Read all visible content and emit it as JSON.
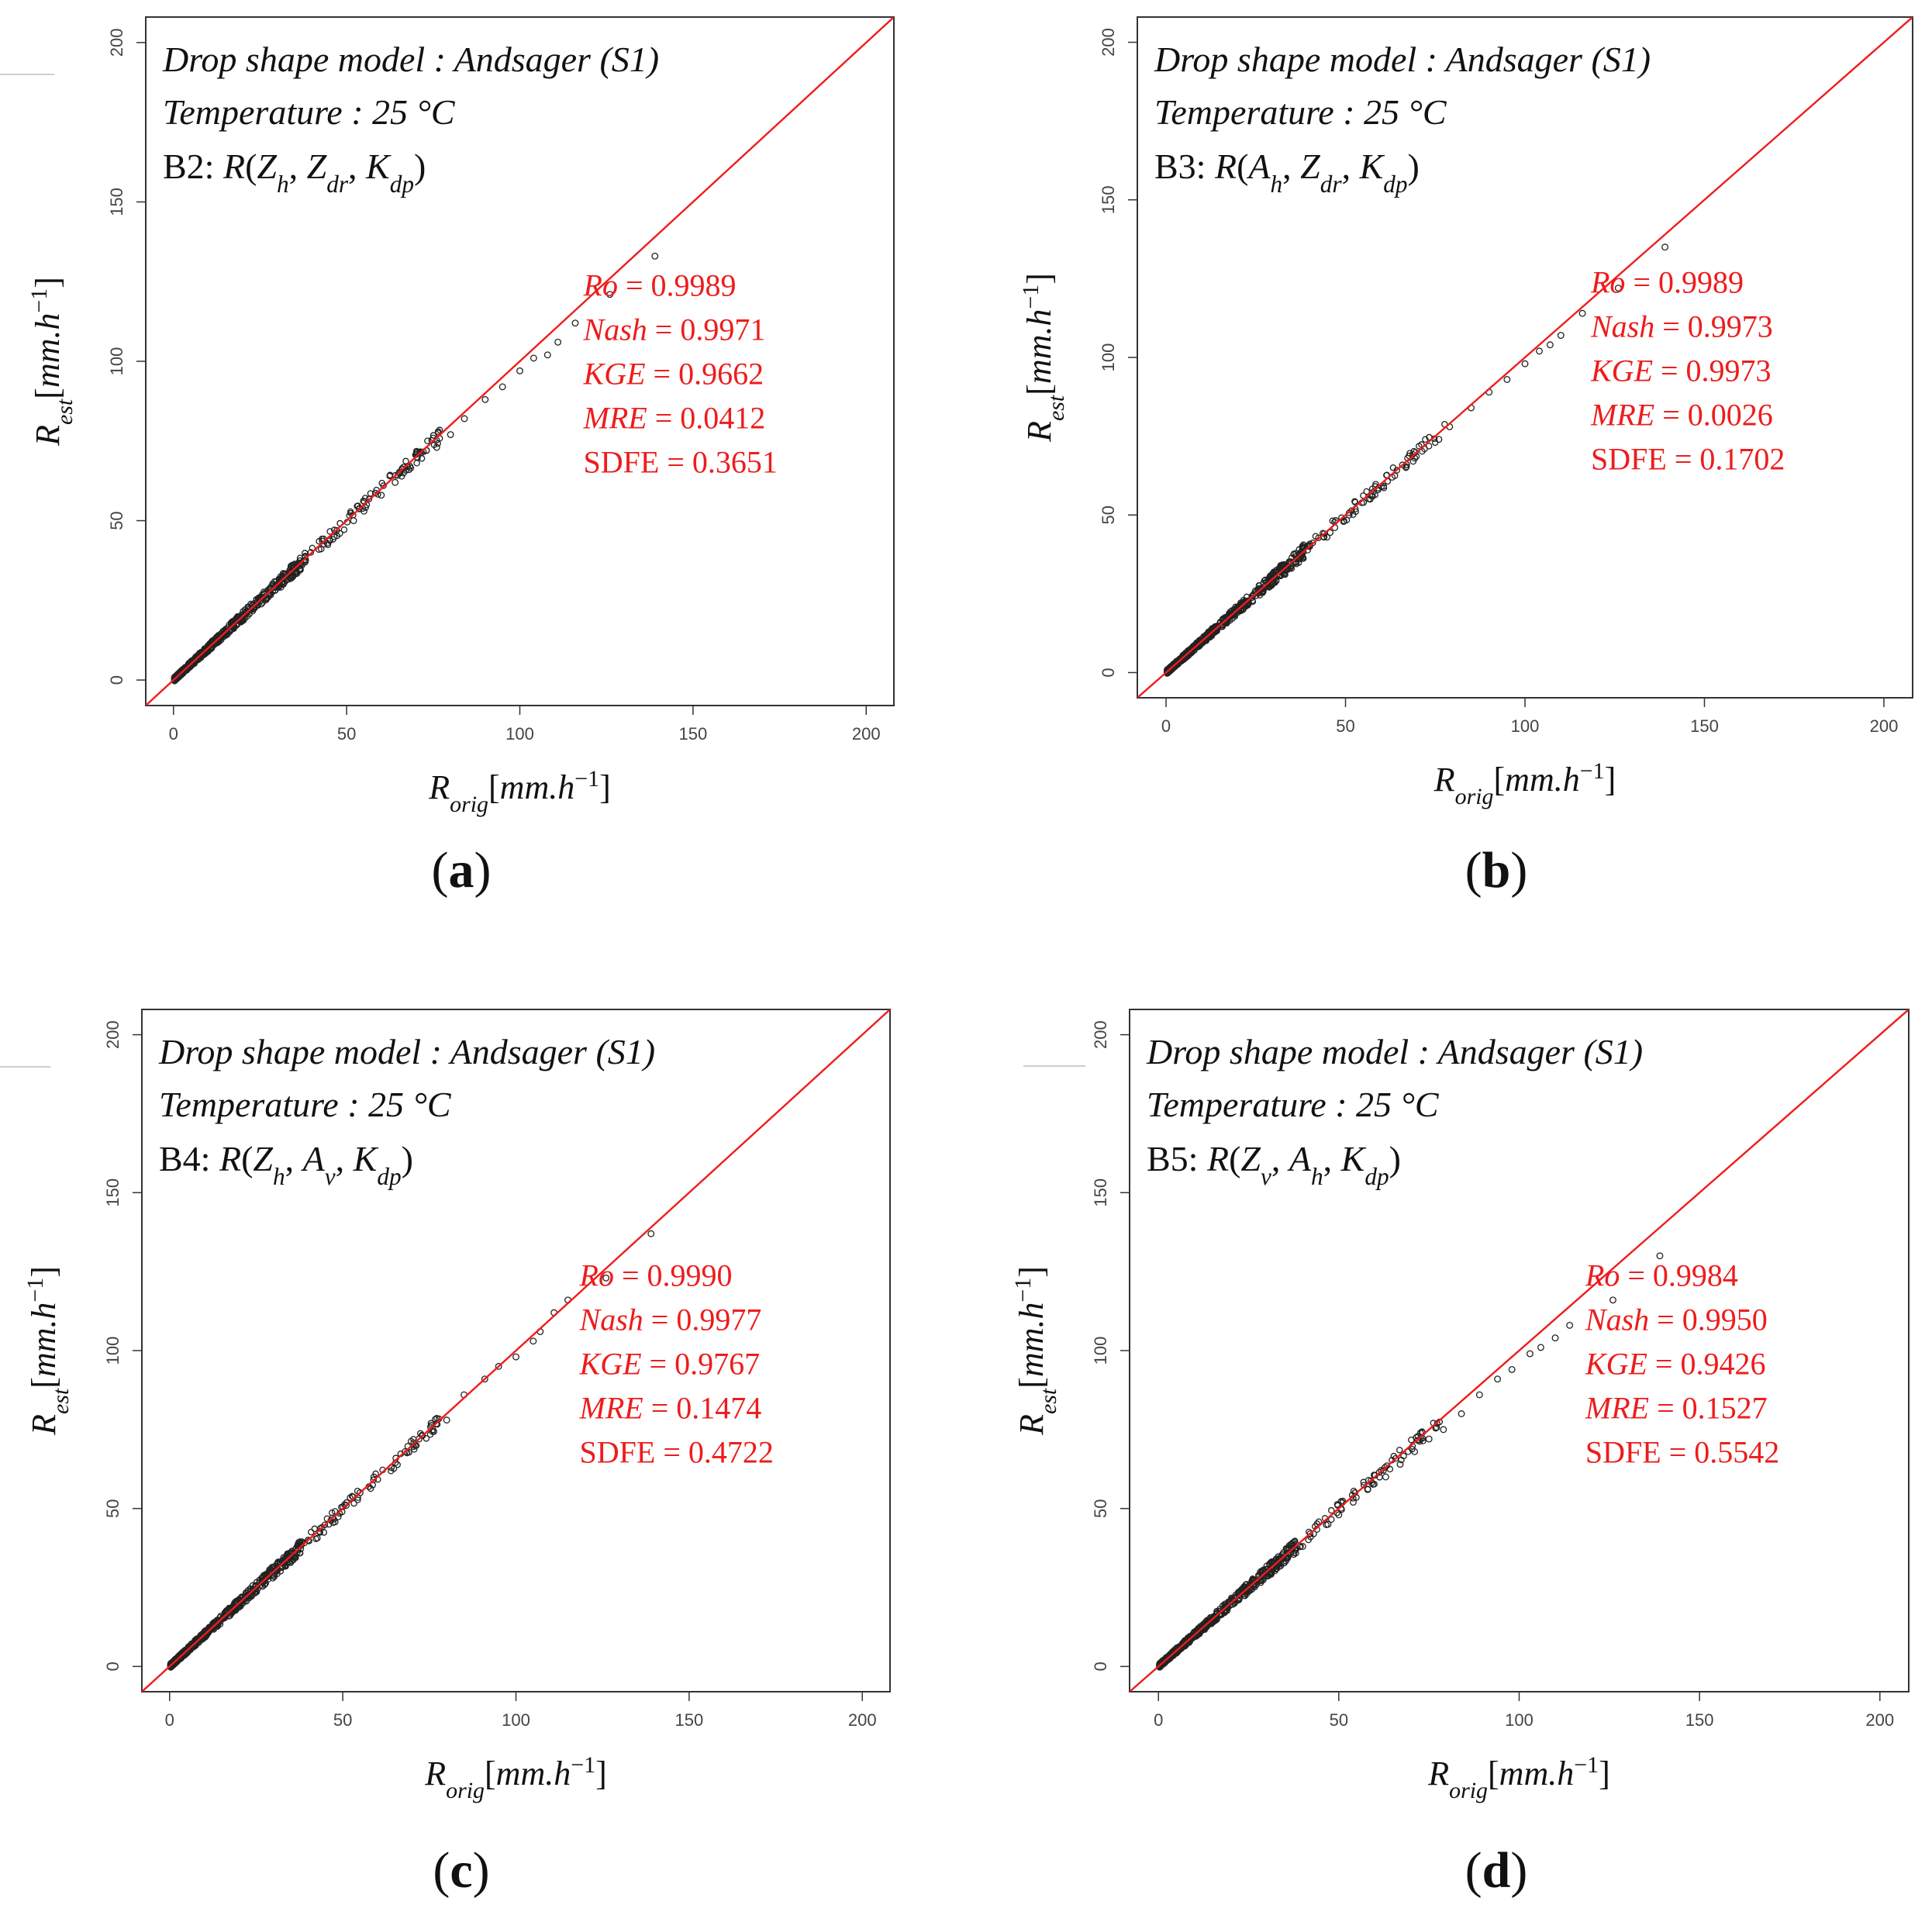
{
  "colors": {
    "identity_line": "#ee1c1c",
    "stats": "#ee1c1c",
    "points": "#222222",
    "frame": "#333333"
  },
  "figure": {
    "panels": [
      {
        "id": "a",
        "label": "a",
        "annotation": {
          "line1": "Drop shape model : Andsager (S1)",
          "line2": "Temperature : 25 °C",
          "band": "B2",
          "vars": [
            "Z_h",
            "Z_dr",
            "K_dp"
          ]
        },
        "stats": {
          "Ro": "0.9989",
          "Nash": "0.9971",
          "KGE": "0.9662",
          "MRE": "0.0412",
          "SDFE": "0.3651"
        }
      },
      {
        "id": "b",
        "label": "b",
        "annotation": {
          "line1": "Drop shape model : Andsager (S1)",
          "line2": "Temperature : 25 °C",
          "band": "B3",
          "vars": [
            "A_h",
            "Z_dr",
            "K_dp"
          ]
        },
        "stats": {
          "Ro": "0.9989",
          "Nash": "0.9973",
          "KGE": "0.9973",
          "MRE": "0.0026",
          "SDFE": "0.1702"
        }
      },
      {
        "id": "c",
        "label": "c",
        "annotation": {
          "line1": "Drop shape model : Andsager (S1)",
          "line2": "Temperature : 25 °C",
          "band": "B4",
          "vars": [
            "Z_h",
            "A_v",
            "K_dp"
          ]
        },
        "stats": {
          "Ro": "0.9990",
          "Nash": "0.9977",
          "KGE": "0.9767",
          "MRE": "0.1474",
          "SDFE": "0.4722"
        }
      },
      {
        "id": "d",
        "label": "d",
        "annotation": {
          "line1": "Drop shape model : Andsager (S1)",
          "line2": "Temperature : 25 °C",
          "band": "B5",
          "vars": [
            "Z_v",
            "A_h",
            "K_dp"
          ]
        },
        "stats": {
          "Ro": "0.9984",
          "Nash": "0.9950",
          "KGE": "0.9426",
          "MRE": "0.1527",
          "SDFE": "0.5542"
        }
      }
    ]
  },
  "chart_data": [
    {
      "type": "scatter",
      "panel": "a",
      "xlabel": "R_orig [mm.h^-1]",
      "ylabel": "R_est [mm.h^-1]",
      "xlim": [
        -8,
        208
      ],
      "ylim": [
        -8,
        208
      ],
      "xticks": [
        0,
        50,
        100,
        150,
        200
      ],
      "yticks": [
        0,
        50,
        100,
        150,
        200
      ],
      "reference_line": "y = x",
      "highlighted_points": [
        [
          139,
          133
        ],
        [
          126,
          121
        ],
        [
          116,
          112
        ],
        [
          111,
          106
        ],
        [
          108,
          102
        ],
        [
          104,
          101
        ],
        [
          100,
          97
        ],
        [
          95,
          92
        ],
        [
          90,
          88
        ],
        [
          84,
          82
        ],
        [
          80,
          77
        ],
        [
          76,
          73
        ],
        [
          73,
          72
        ],
        [
          68,
          66
        ],
        [
          64,
          62
        ],
        [
          60,
          58
        ],
        [
          55,
          53
        ],
        [
          52,
          50
        ],
        [
          48,
          46
        ],
        [
          45,
          44
        ],
        [
          42,
          41
        ],
        [
          38,
          37
        ],
        [
          35,
          34
        ]
      ]
    },
    {
      "type": "scatter",
      "panel": "b",
      "xlabel": "R_orig [mm.h^-1]",
      "ylabel": "R_est [mm.h^-1]",
      "xlim": [
        -8,
        208
      ],
      "ylim": [
        -8,
        208
      ],
      "xticks": [
        0,
        50,
        100,
        150,
        200
      ],
      "yticks": [
        0,
        50,
        100,
        150,
        200
      ],
      "reference_line": "y = x",
      "highlighted_points": [
        [
          139,
          135
        ],
        [
          126,
          122
        ],
        [
          116,
          114
        ],
        [
          110,
          107
        ],
        [
          107,
          104
        ],
        [
          104,
          102
        ],
        [
          100,
          98
        ],
        [
          95,
          93
        ],
        [
          90,
          89
        ],
        [
          85,
          84
        ],
        [
          79,
          78
        ],
        [
          76,
          74
        ],
        [
          72,
          71
        ],
        [
          67,
          66
        ],
        [
          63,
          62
        ],
        [
          59,
          58
        ],
        [
          55,
          54
        ],
        [
          51,
          50
        ],
        [
          47,
          46
        ],
        [
          44,
          43
        ],
        [
          40,
          40
        ],
        [
          37,
          36
        ],
        [
          34,
          33
        ]
      ]
    },
    {
      "type": "scatter",
      "panel": "c",
      "xlabel": "R_orig [mm.h^-1]",
      "ylabel": "R_est [mm.h^-1]",
      "xlim": [
        -8,
        208
      ],
      "ylim": [
        -8,
        208
      ],
      "xticks": [
        0,
        50,
        100,
        150,
        200
      ],
      "yticks": [
        0,
        50,
        100,
        150,
        200
      ],
      "reference_line": "y = x",
      "highlighted_points": [
        [
          139,
          137
        ],
        [
          126,
          123
        ],
        [
          115,
          116
        ],
        [
          111,
          112
        ],
        [
          107,
          106
        ],
        [
          105,
          103
        ],
        [
          100,
          98
        ],
        [
          95,
          95
        ],
        [
          91,
          91
        ],
        [
          85,
          86
        ],
        [
          80,
          78
        ],
        [
          76,
          75
        ],
        [
          72,
          72
        ],
        [
          68,
          68
        ],
        [
          64,
          63
        ],
        [
          59,
          60
        ],
        [
          55,
          55
        ],
        [
          51,
          51
        ],
        [
          47,
          47
        ],
        [
          44,
          44
        ],
        [
          40,
          40
        ],
        [
          37,
          37
        ],
        [
          33,
          33
        ]
      ]
    },
    {
      "type": "scatter",
      "panel": "d",
      "xlabel": "R_orig [mm.h^-1]",
      "ylabel": "R_est [mm.h^-1]",
      "xlim": [
        -8,
        208
      ],
      "ylim": [
        -8,
        208
      ],
      "xticks": [
        0,
        50,
        100,
        150,
        200
      ],
      "yticks": [
        0,
        50,
        100,
        150,
        200
      ],
      "reference_line": "y = x",
      "highlighted_points": [
        [
          139,
          130
        ],
        [
          126,
          116
        ],
        [
          114,
          108
        ],
        [
          110,
          104
        ],
        [
          106,
          101
        ],
        [
          103,
          99
        ],
        [
          98,
          94
        ],
        [
          94,
          91
        ],
        [
          89,
          86
        ],
        [
          84,
          80
        ],
        [
          79,
          75
        ],
        [
          75,
          72
        ],
        [
          71,
          68
        ],
        [
          67,
          64
        ],
        [
          63,
          60
        ],
        [
          58,
          56
        ],
        [
          54,
          52
        ],
        [
          50,
          48
        ],
        [
          47,
          45
        ],
        [
          43,
          42
        ],
        [
          40,
          38
        ],
        [
          36,
          35
        ],
        [
          33,
          32
        ]
      ]
    }
  ]
}
